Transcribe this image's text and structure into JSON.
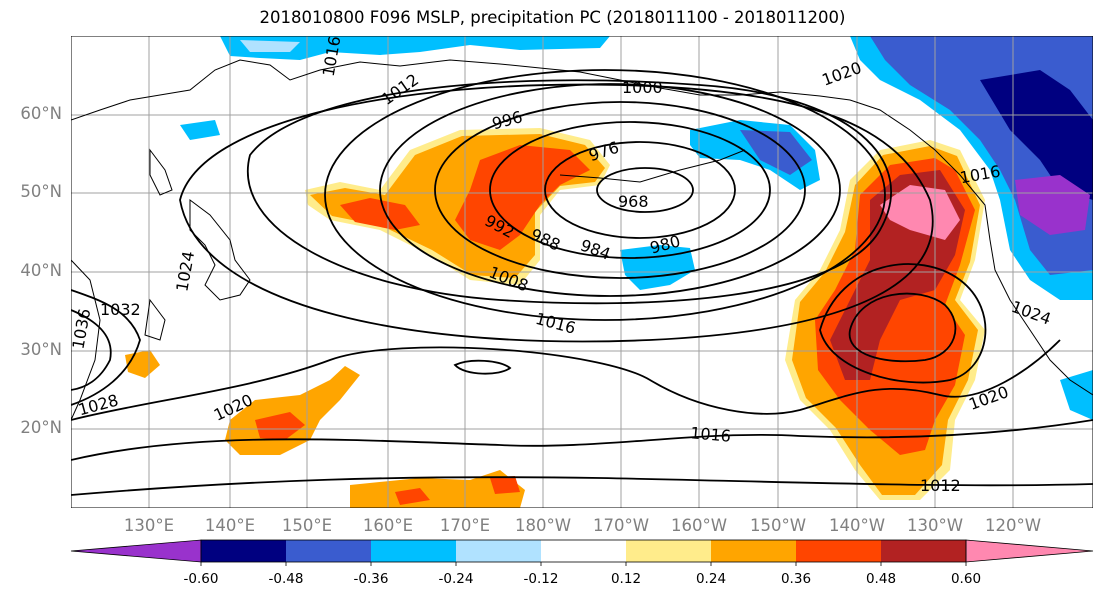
{
  "title": "2018010800 F096 MSLP, precipitation PC (2018011100 - 2018011200)",
  "map": {
    "lat_labels": [
      "60°N",
      "50°N",
      "40°N",
      "30°N",
      "20°N"
    ],
    "lon_labels": [
      "130°E",
      "140°E",
      "150°E",
      "160°E",
      "170°E",
      "180°W",
      "170°W",
      "160°W",
      "150°W",
      "140°W",
      "130°W",
      "120°W"
    ],
    "contour_labels": [
      "1000",
      "996",
      "976",
      "968",
      "992",
      "988",
      "984",
      "980",
      "1008",
      "1016",
      "1020",
      "1016",
      "1012",
      "1020",
      "1024",
      "1028",
      "1032",
      "1036",
      "1024",
      "1012",
      "1020",
      "1016",
      "1016"
    ]
  },
  "colorbar": {
    "colors": [
      "#9932cc",
      "#000080",
      "#3a5ccf",
      "#00bfff",
      "#b0e2ff",
      "#ffffff",
      "#ffec8b",
      "#ffa500",
      "#ff4500",
      "#b22222",
      "#ff88b0"
    ],
    "tick_labels": [
      "-0.60",
      "-0.48",
      "-0.36",
      "-0.24",
      "-0.12",
      "0.12",
      "0.24",
      "0.36",
      "0.48",
      "0.60"
    ]
  }
}
